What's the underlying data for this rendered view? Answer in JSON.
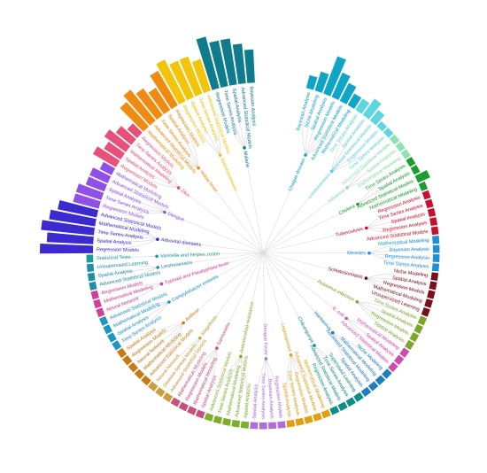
{
  "chart_data": {
    "type": "radial-dendrogram",
    "diseases": [
      {
        "label": "Chagas disease",
        "color": "#0ea5c6",
        "methods": [
          {
            "label": "Bayesian Analysis",
            "value": 2
          },
          {
            "label": "Niche Modeling",
            "value": 3
          },
          {
            "label": "Spatial Analysis",
            "value": 6
          },
          {
            "label": "Regression Models",
            "value": 4
          },
          {
            "label": "Advanced Statistical Models",
            "value": 3
          },
          {
            "label": "Mathematical Modeling",
            "value": 2
          }
        ]
      },
      {
        "label": "Leishmaniasis",
        "color": "#5dd6e0",
        "methods": [
          {
            "label": "Time Series Analysis",
            "value": 2
          },
          {
            "label": "Spatial Analysis",
            "value": 3
          },
          {
            "label": "Advanced Statistical Models",
            "value": 2
          },
          {
            "label": "Regression Models",
            "value": 1
          },
          {
            "label": "Time Series Analysis",
            "value": 1
          }
        ]
      },
      {
        "label": "Influenza",
        "color": "#8ee3b0",
        "methods": [
          {
            "label": "Advanced Statistical Models",
            "value": 1
          },
          {
            "label": "Spatial Analysis",
            "value": 1
          },
          {
            "label": "Mathematical Modeling",
            "value": 1
          }
        ]
      },
      {
        "label": "Cholera",
        "color": "#1a9e2e",
        "methods": [
          {
            "label": "Time Series Analysis",
            "value": 1
          },
          {
            "label": "Spatial Analysis",
            "value": 1
          },
          {
            "label": "Advanced Statistical Models",
            "value": 2
          },
          {
            "label": "Mathematical Modeling",
            "value": 1
          }
        ]
      },
      {
        "label": "Tuberculosis",
        "color": "#c8102e",
        "methods": [
          {
            "label": "Regression Analysis",
            "value": 1
          },
          {
            "label": "Time Series Analysis",
            "value": 1
          },
          {
            "label": "Spatial Analysis",
            "value": 1
          },
          {
            "label": "Regression Analysis",
            "value": 1
          },
          {
            "label": "Advanced Statistical Models",
            "value": 1
          }
        ]
      },
      {
        "label": "Measles",
        "color": "#1d8fd8",
        "methods": [
          {
            "label": "Mathematical Modeling",
            "value": 1
          },
          {
            "label": "Bayesian Analysis",
            "value": 1
          },
          {
            "label": "Regression Analysis",
            "value": 1
          },
          {
            "label": "Time Series Analysis",
            "value": 1
          }
        ]
      },
      {
        "label": "Schistosomiasis",
        "color": "#7a0f1c",
        "methods": [
          {
            "label": "Niche Modeling",
            "value": 1
          },
          {
            "label": "Spatial Analysis",
            "value": 1
          },
          {
            "label": "Regression Models",
            "value": 1
          },
          {
            "label": "Mathematical Modeling",
            "value": 1
          },
          {
            "label": "Unsupervised Learning",
            "value": 1
          }
        ]
      },
      {
        "label": "Rotavirus infection",
        "color": "#7aa82a",
        "methods": [
          {
            "label": "Time Series Analysis",
            "value": 1
          },
          {
            "label": "Spatial Analysis",
            "value": 1
          },
          {
            "label": "Regression Models",
            "value": 1
          },
          {
            "label": "Spatial Analysis",
            "value": 1
          }
        ]
      },
      {
        "label": "E. coli",
        "color": "#d04ab0",
        "methods": [
          {
            "label": "Mathematical Modeling",
            "value": 1
          },
          {
            "label": "Spatial Analysis",
            "value": 1
          },
          {
            "label": "Advanced Statistical Models",
            "value": 1
          }
        ]
      },
      {
        "label": "Hantavirus",
        "color": "#1e7fbf",
        "methods": [
          {
            "label": "Niche Modeling",
            "value": 1
          },
          {
            "label": "Mathematical Modeling",
            "value": 1
          },
          {
            "label": "Advanced Statistical Modeling",
            "value": 1
          },
          {
            "label": "Spatial Analysis",
            "value": 1
          }
        ]
      },
      {
        "label": "Chikungunya",
        "color": "#0d8f86",
        "methods": [
          {
            "label": "Supervised Learning",
            "value": 1
          },
          {
            "label": "Time Series Analysis",
            "value": 1
          },
          {
            "label": "Advanced Statistical Models",
            "value": 1
          },
          {
            "label": "Regression Analysis",
            "value": 1
          }
        ]
      },
      {
        "label": "Leptospirosis",
        "color": "#e0a010",
        "methods": [
          {
            "label": "Mathematical Modeling",
            "value": 1
          },
          {
            "label": "Advanced Statistical Models",
            "value": 1
          },
          {
            "label": "Regression Models",
            "value": 1
          },
          {
            "label": "Time Series Analysis",
            "value": 1
          },
          {
            "label": "Spatial Analysis",
            "value": 1
          }
        ]
      },
      {
        "label": "Dengue Fever",
        "color": "#b06fd8",
        "methods": [
          {
            "label": "Regression Models",
            "value": 1
          },
          {
            "label": "Bayesian Analysis",
            "value": 1
          },
          {
            "label": "Time Series Analysis",
            "value": 1
          },
          {
            "label": "Spatial Analysis",
            "value": 1
          }
        ]
      },
      {
        "label": "Antimicrobial resistance",
        "color": "#7fae2a",
        "methods": [
          {
            "label": "Spatial Analysis",
            "value": 1
          },
          {
            "label": "Advanced Statistical Models",
            "value": 1
          },
          {
            "label": "Mathematical Modeling",
            "value": 1
          },
          {
            "label": "Time Series Analysis",
            "value": 1
          },
          {
            "label": "Advanced Statistical Models",
            "value": 1
          }
        ]
      },
      {
        "label": "Salmonella",
        "color": "#c8507a",
        "methods": [
          {
            "label": "Spatial Analysis",
            "value": 1
          },
          {
            "label": "Mathematical Modeling",
            "value": 1
          },
          {
            "label": "Regression Models",
            "value": 1
          },
          {
            "label": "Mathematical Modeling",
            "value": 1
          }
        ]
      },
      {
        "label": "Shigellosis",
        "color": "#c8a040",
        "methods": [
          {
            "label": "Advanced Statistical Models",
            "value": 1
          },
          {
            "label": "Disease Spread Models",
            "value": 1
          },
          {
            "label": "Neural Network",
            "value": 1
          }
        ]
      },
      {
        "label": "Anthrax",
        "color": "#c87a10",
        "methods": [
          {
            "label": "Advanced Statistical Models",
            "value": 1
          },
          {
            "label": "Mathematical Modeling",
            "value": 1
          },
          {
            "label": "Neural Network",
            "value": 1
          },
          {
            "label": "Regression Models",
            "value": 1
          },
          {
            "label": "Spatial Analysis",
            "value": 1
          }
        ]
      },
      {
        "label": "Campylobacter enteritis",
        "color": "#1f95c4",
        "methods": [
          {
            "label": "Time Series Analysis",
            "value": 1
          },
          {
            "label": "Spatial Analysis",
            "value": 1
          },
          {
            "label": "Mathematical Modeling",
            "value": 1
          },
          {
            "label": "Advanced Statistical Models",
            "value": 1
          }
        ]
      },
      {
        "label": "Typhoid and Paratyphoid fever",
        "color": "#d0409a",
        "methods": [
          {
            "label": "Neural Network",
            "value": 1
          },
          {
            "label": "Mathematical Modeling",
            "value": 1
          },
          {
            "label": "Regression Models",
            "value": 1
          }
        ]
      },
      {
        "label": "Leishmaniasis",
        "color": "#1e8fa8",
        "methods": [
          {
            "label": "Advanced Statistical Models",
            "value": 1
          },
          {
            "label": "Spatial Analysis",
            "value": 1
          },
          {
            "label": "Unsupervised Learning",
            "value": 1
          }
        ]
      },
      {
        "label": "Varicella and herpes zoster",
        "color": "#1a9a9a",
        "methods": [
          {
            "label": "Statistical Tests",
            "value": 1
          }
        ]
      },
      {
        "label": "Arboviral diseases",
        "color": "#3a2ad0",
        "methods": [
          {
            "label": "Regression Models",
            "value": 8
          },
          {
            "label": "Spatial Analysis",
            "value": 7
          },
          {
            "label": "Time Series Analysis",
            "value": 8
          },
          {
            "label": "Mathematical Modeling",
            "value": 7
          },
          {
            "label": "Advanced Statistical Models",
            "value": 6
          }
        ]
      },
      {
        "label": "Dengue",
        "color": "#8f50e8",
        "methods": [
          {
            "label": "Regression Models",
            "value": 4
          },
          {
            "label": "Time Series Analysis",
            "value": 4
          },
          {
            "label": "Spatial Analysis",
            "value": 3
          },
          {
            "label": "Advanced Statistical Models",
            "value": 3
          },
          {
            "label": "Mathematical Modeling",
            "value": 2
          }
        ]
      },
      {
        "label": "Zika",
        "color": "#e6507a",
        "methods": [
          {
            "label": "Regression Models",
            "value": 4
          },
          {
            "label": "Spatial Analysis",
            "value": 3
          },
          {
            "label": "Mathematical Modeling",
            "value": 4
          },
          {
            "label": "Time Series Analysis",
            "value": 3
          },
          {
            "label": "Regression Models",
            "value": 2
          }
        ]
      },
      {
        "label": "Yellow fever",
        "color": "#f08a10",
        "methods": [
          {
            "label": "Mathematical Modeling",
            "value": 5
          },
          {
            "label": "Advanced Statistical Models",
            "value": 6
          },
          {
            "label": "Time Series Analysis",
            "value": 5
          },
          {
            "label": "Spatial Analysis",
            "value": 4
          },
          {
            "label": "Regression Models",
            "value": 6
          }
        ]
      },
      {
        "label": "Schistosomiasis",
        "color": "#f2c40a",
        "methods": [
          {
            "label": "Regression Models",
            "value": 7
          },
          {
            "label": "Spatial Analysis",
            "value": 6
          },
          {
            "label": "Time Series Analysis",
            "value": 6
          },
          {
            "label": "Advanced Statistical Models",
            "value": 5
          }
        ]
      },
      {
        "label": "Malaria",
        "color": "#0e7c8c",
        "methods": [
          {
            "label": "Regression Models",
            "value": 8
          },
          {
            "label": "Time Series Analysis",
            "value": 7
          },
          {
            "label": "Spatial Analysis",
            "value": 7
          },
          {
            "label": "Advanced Statistical Models",
            "value": 6
          },
          {
            "label": "Bayesian Analysis",
            "value": 5
          }
        ]
      }
    ]
  }
}
